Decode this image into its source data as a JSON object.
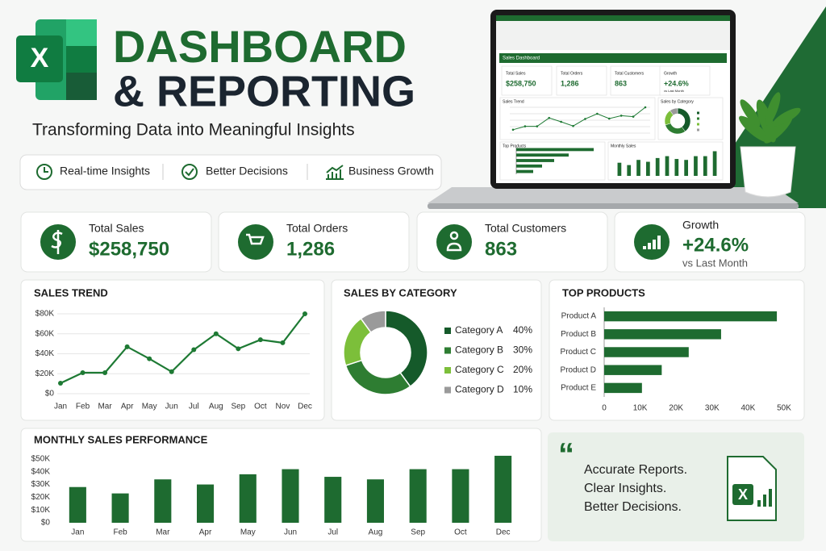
{
  "header": {
    "logo": "X",
    "title_line1": "DASHBOARD",
    "title_line2": "& REPORTING",
    "subtitle": "Transforming Data into Meaningful Insights"
  },
  "features": [
    "Real-time Insights",
    "Better Decisions",
    "Business Growth"
  ],
  "kpis": [
    {
      "label": "Total Sales",
      "value": "$258,750"
    },
    {
      "label": "Total Orders",
      "value": "1,286"
    },
    {
      "label": "Total Customers",
      "value": "863"
    },
    {
      "label": "Growth",
      "value": "+24.6%",
      "note": "vs Last Month"
    }
  ],
  "laptop": {
    "title": "Sales Dashboard",
    "trend_title": "Sales Trend",
    "category_title": "Sales by Category",
    "products_title": "Top Products",
    "monthly_title": "Monthly Sales"
  },
  "chart_data": [
    {
      "type": "line",
      "title": "SALES TREND",
      "categories": [
        "Jan",
        "Feb",
        "Mar",
        "Apr",
        "May",
        "Jun",
        "Jul",
        "Aug",
        "Sep",
        "Oct",
        "Nov",
        "Dec"
      ],
      "values": [
        10500,
        21000,
        21000,
        47000,
        35000,
        22000,
        44000,
        60000,
        45000,
        54000,
        51000,
        80000
      ],
      "color": "#1e7a34",
      "ylim": [
        0,
        80000
      ],
      "yticks": [
        {
          "value": 0,
          "label": "$0"
        },
        {
          "value": 20000,
          "label": "$20K"
        },
        {
          "value": 40000,
          "label": "$40K"
        },
        {
          "value": 60000,
          "label": "$60K"
        },
        {
          "value": 80000,
          "label": "$80K"
        }
      ],
      "grid": true
    },
    {
      "type": "pie",
      "donut": true,
      "title": "SALES BY CATEGORY",
      "categories": [
        "Category A",
        "Category B",
        "Category C",
        "Category D"
      ],
      "values": [
        40,
        30,
        20,
        10
      ],
      "value_labels": [
        "40%",
        "30%",
        "20%",
        "10%"
      ],
      "colors": [
        "#155a2a",
        "#2e7d32",
        "#7cbf3a",
        "#9a9a9a"
      ]
    },
    {
      "type": "bar",
      "orientation": "horizontal",
      "title": "TOP PRODUCTS",
      "categories": [
        "Product A",
        "Product B",
        "Product C",
        "Product D",
        "Product E"
      ],
      "values": [
        48000,
        32500,
        23500,
        16000,
        10500
      ],
      "color": "#1e6b30",
      "xlim": [
        0,
        50000
      ],
      "xticks": [
        0,
        {
          "value": 10000,
          "label": "10K"
        },
        {
          "value": 20000,
          "label": "20K"
        },
        {
          "value": 30000,
          "label": "30K"
        },
        {
          "value": 40000,
          "label": "40K"
        },
        {
          "value": 50000,
          "label": "50K"
        }
      ],
      "grid": false
    },
    {
      "type": "bar",
      "title": "MONTHLY SALES PERFORMANCE",
      "categories": [
        "Jan",
        "Feb",
        "Mar",
        "Apr",
        "May",
        "Jun",
        "Jul",
        "Aug",
        "Sep",
        "Oct",
        "Dec"
      ],
      "values": [
        28000,
        23000,
        34000,
        30000,
        38000,
        42000,
        36000,
        34000,
        42000,
        42000,
        52500
      ],
      "color": "#1e6b30",
      "ylim": [
        0,
        55000
      ],
      "yticks": [
        {
          "value": 0,
          "label": "$0"
        },
        {
          "value": 10000,
          "label": "$10K"
        },
        {
          "value": 20000,
          "label": "$20K"
        },
        {
          "value": 30000,
          "label": "$30K"
        },
        {
          "value": 40000,
          "label": "$40K"
        },
        {
          "value": 50000,
          "label": "$50K"
        }
      ],
      "grid": false
    }
  ],
  "quote": {
    "mark": "“",
    "lines": [
      "Accurate Reports.",
      "Clear Insights.",
      "Better Decisions."
    ]
  }
}
